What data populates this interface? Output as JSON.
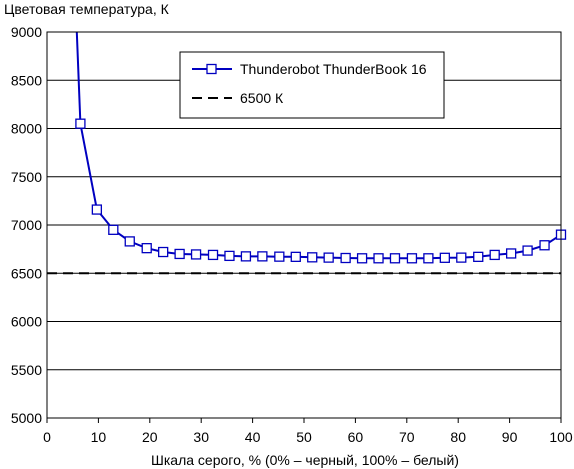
{
  "chart_data": {
    "type": "line",
    "ylabel": "Цветовая температура, К",
    "xlabel": "Шкала серого, % (0% – черный, 100% – белый)",
    "xlim": [
      0,
      100
    ],
    "ylim": [
      5000,
      9000
    ],
    "xticks": [
      0,
      10,
      20,
      30,
      40,
      50,
      60,
      70,
      80,
      90,
      100
    ],
    "yticks": [
      5000,
      5500,
      6000,
      6500,
      7000,
      7500,
      8000,
      8500,
      9000
    ],
    "grid": "horizontal",
    "legend_position": "top-right",
    "series": [
      {
        "name": "Thunderobot ThunderBook 16",
        "color": "#0000c0",
        "marker": "square",
        "points": [
          [
            5.8,
            9000
          ],
          [
            6.5,
            8050
          ],
          [
            9.7,
            7160
          ],
          [
            12.9,
            6950
          ],
          [
            16.1,
            6830
          ],
          [
            19.4,
            6760
          ],
          [
            22.6,
            6720
          ],
          [
            25.8,
            6700
          ],
          [
            29.0,
            6695
          ],
          [
            32.3,
            6690
          ],
          [
            35.5,
            6680
          ],
          [
            38.7,
            6675
          ],
          [
            41.9,
            6675
          ],
          [
            45.2,
            6672
          ],
          [
            48.4,
            6670
          ],
          [
            51.6,
            6665
          ],
          [
            54.8,
            6662
          ],
          [
            58.1,
            6658
          ],
          [
            61.3,
            6655
          ],
          [
            64.5,
            6655
          ],
          [
            67.7,
            6655
          ],
          [
            71.0,
            6655
          ],
          [
            74.2,
            6655
          ],
          [
            77.4,
            6660
          ],
          [
            80.6,
            6662
          ],
          [
            83.9,
            6670
          ],
          [
            87.1,
            6690
          ],
          [
            90.3,
            6705
          ],
          [
            93.5,
            6735
          ],
          [
            96.8,
            6790
          ],
          [
            100.0,
            6900
          ]
        ]
      },
      {
        "name": "6500 К",
        "color": "#000000",
        "style": "dashed",
        "points": [
          [
            0,
            6500
          ],
          [
            100,
            6500
          ]
        ]
      }
    ]
  }
}
